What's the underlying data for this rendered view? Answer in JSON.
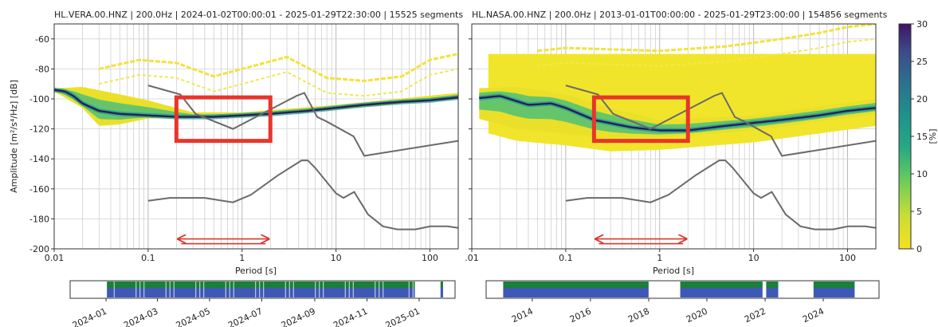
{
  "chart_data": [
    {
      "type": "heatmap",
      "title": "HL.VERA.00.HNZ | 200.0Hz | 2024-01-02T00:00:01 - 2025-01-29T22:30:00 | 15525 segments",
      "xlabel": "Period [s]",
      "ylabel": "Amplitude [m²/s⁴/Hz] [dB]",
      "x_scale": "log",
      "xlim": [
        0.01,
        200
      ],
      "ylim": [
        -200,
        -50
      ],
      "x_tick_labels": [
        "0.01",
        "0.1",
        "1",
        "10",
        "100"
      ],
      "y_tick_labels": [
        "-60",
        "-80",
        "-100",
        "-120",
        "-140",
        "-160",
        "-180",
        "-200"
      ],
      "grid": true,
      "ppsd_mode": [
        [
          0.01,
          -94
        ],
        [
          0.013,
          -95
        ],
        [
          0.016,
          -98
        ],
        [
          0.02,
          -103
        ],
        [
          0.03,
          -108
        ],
        [
          0.05,
          -110
        ],
        [
          0.1,
          -111
        ],
        [
          0.2,
          -112
        ],
        [
          0.5,
          -112
        ],
        [
          1,
          -111
        ],
        [
          2,
          -110
        ],
        [
          5,
          -108
        ],
        [
          10,
          -106
        ],
        [
          20,
          -104
        ],
        [
          50,
          -102
        ],
        [
          100,
          -101
        ],
        [
          200,
          -99
        ]
      ],
      "ppsd_lower": [
        [
          0.01,
          -95
        ],
        [
          0.02,
          -106
        ],
        [
          0.03,
          -118
        ],
        [
          0.05,
          -117
        ],
        [
          0.1,
          -113
        ],
        [
          0.3,
          -113
        ],
        [
          1,
          -112
        ],
        [
          10,
          -107
        ],
        [
          200,
          -100
        ]
      ],
      "ppsd_upper": [
        [
          0.01,
          -93
        ],
        [
          0.02,
          -92
        ],
        [
          0.05,
          -97
        ],
        [
          0.1,
          -101
        ],
        [
          0.3,
          -109
        ],
        [
          1,
          -109
        ],
        [
          10,
          -104
        ],
        [
          200,
          -96
        ]
      ],
      "sparse_band": [
        [
          0.03,
          -80
        ],
        [
          0.08,
          -74
        ],
        [
          0.2,
          -76
        ],
        [
          0.5,
          -85
        ],
        [
          1,
          -80
        ],
        [
          3,
          -72
        ],
        [
          8,
          -86
        ],
        [
          20,
          -88
        ],
        [
          50,
          -85
        ],
        [
          100,
          -74
        ],
        [
          200,
          -70
        ]
      ],
      "nhnm": [
        [
          0.1,
          -91
        ],
        [
          0.22,
          -97
        ],
        [
          0.32,
          -110
        ],
        [
          0.8,
          -120
        ],
        [
          3.8,
          -98
        ],
        [
          4.6,
          -96
        ],
        [
          6.3,
          -112
        ],
        [
          7.9,
          -115
        ],
        [
          15.4,
          -125
        ],
        [
          20,
          -138
        ],
        [
          200,
          -128
        ]
      ],
      "nlnm": [
        [
          0.1,
          -168
        ],
        [
          0.17,
          -166
        ],
        [
          0.4,
          -166
        ],
        [
          0.8,
          -169
        ],
        [
          1.24,
          -164
        ],
        [
          2.4,
          -151
        ],
        [
          4.3,
          -141
        ],
        [
          5,
          -141
        ],
        [
          6,
          -146
        ],
        [
          10,
          -163
        ],
        [
          12,
          -166
        ],
        [
          15.6,
          -162
        ],
        [
          21.9,
          -177
        ],
        [
          31.6,
          -185
        ],
        [
          45,
          -187
        ],
        [
          70,
          -187
        ],
        [
          101,
          -185
        ],
        [
          154,
          -185
        ],
        [
          200,
          -186
        ]
      ],
      "colorbar": {
        "label": "[%]",
        "min": 0,
        "max": 30,
        "ticks": [
          "0",
          "5",
          "10",
          "15",
          "20",
          "25",
          "30"
        ],
        "cmap": "viridis_r"
      },
      "highlight_box": {
        "x": [
          0.2,
          2
        ],
        "y": [
          -99,
          -128
        ],
        "color": "#e8352b"
      },
      "arrow_span": {
        "x": [
          0.2,
          2
        ],
        "color": "#d9382e"
      },
      "availability": {
        "tick_labels": [
          "2024-01",
          "2024-03",
          "2024-05",
          "2024-07",
          "2024-09",
          "2024-11",
          "2025-01"
        ],
        "segments": [
          {
            "start": "2024-01-02",
            "end": "2024-12-27"
          },
          {
            "start": "2025-01-26",
            "end": "2025-01-29"
          }
        ],
        "colors": {
          "green": "#1a7f3a",
          "blue": "#3f58b5"
        }
      }
    },
    {
      "type": "heatmap",
      "title": "HL.NASA.00.HNZ | 200.0Hz | 2013-01-01T00:00:00 - 2025-01-29T23:00:00 | 154856 segments",
      "xlabel": "Period [s]",
      "x_scale": "log",
      "xlim": [
        0.01,
        200
      ],
      "ylim": [
        -200,
        -50
      ],
      "x_tick_labels": [
        ".01",
        "0.1",
        "1",
        "10",
        "100"
      ],
      "grid": true,
      "ppsd_mode": [
        [
          0.01,
          -100
        ],
        [
          0.02,
          -98
        ],
        [
          0.04,
          -104
        ],
        [
          0.07,
          -103
        ],
        [
          0.1,
          -106
        ],
        [
          0.2,
          -114
        ],
        [
          0.5,
          -119
        ],
        [
          1,
          -121
        ],
        [
          2,
          -121
        ],
        [
          5,
          -118
        ],
        [
          10,
          -116
        ],
        [
          20,
          -114
        ],
        [
          50,
          -111
        ],
        [
          100,
          -108
        ],
        [
          200,
          -106
        ]
      ],
      "ppsd_lower": [
        [
          0.01,
          -112
        ],
        [
          0.03,
          -120
        ],
        [
          0.1,
          -123
        ],
        [
          0.3,
          -127
        ],
        [
          1,
          -126
        ],
        [
          10,
          -121
        ],
        [
          200,
          -110
        ]
      ],
      "ppsd_upper": [
        [
          0.01,
          -93
        ],
        [
          0.03,
          -92
        ],
        [
          0.1,
          -97
        ],
        [
          0.3,
          -106
        ],
        [
          1,
          -114
        ],
        [
          10,
          -111
        ],
        [
          200,
          -100
        ]
      ],
      "yellow_fill": [
        [
          0.01,
          -70
        ],
        [
          200,
          -70
        ]
      ],
      "sparse_band": [
        [
          0.05,
          -68
        ],
        [
          0.1,
          -66
        ],
        [
          1,
          -68
        ],
        [
          5,
          -65
        ],
        [
          20,
          -60
        ],
        [
          50,
          -56
        ],
        [
          100,
          -52
        ],
        [
          200,
          -50
        ]
      ],
      "nhnm": [
        [
          0.1,
          -91
        ],
        [
          0.22,
          -97
        ],
        [
          0.32,
          -110
        ],
        [
          0.8,
          -120
        ],
        [
          3.8,
          -98
        ],
        [
          4.6,
          -96
        ],
        [
          6.3,
          -112
        ],
        [
          7.9,
          -115
        ],
        [
          15.4,
          -125
        ],
        [
          20,
          -138
        ],
        [
          200,
          -128
        ]
      ],
      "nlnm": [
        [
          0.1,
          -168
        ],
        [
          0.17,
          -166
        ],
        [
          0.4,
          -166
        ],
        [
          0.8,
          -169
        ],
        [
          1.24,
          -164
        ],
        [
          2.4,
          -151
        ],
        [
          4.3,
          -141
        ],
        [
          5,
          -141
        ],
        [
          6,
          -146
        ],
        [
          10,
          -163
        ],
        [
          12,
          -166
        ],
        [
          15.6,
          -162
        ],
        [
          21.9,
          -177
        ],
        [
          31.6,
          -185
        ],
        [
          45,
          -187
        ],
        [
          70,
          -187
        ],
        [
          101,
          -185
        ],
        [
          154,
          -185
        ],
        [
          200,
          -186
        ]
      ],
      "highlight_box": {
        "x": [
          0.2,
          2
        ],
        "y": [
          -99,
          -128
        ],
        "color": "#e8352b"
      },
      "arrow_span": {
        "x": [
          0.2,
          2
        ],
        "color": "#d9382e"
      },
      "availability": {
        "tick_labels": [
          "2014",
          "2016",
          "2018",
          "2020",
          "2022",
          "2024"
        ],
        "segments": [
          {
            "start": "2013-01-01",
            "end": "2017-12-31"
          },
          {
            "start": "2019-02-01",
            "end": "2021-11-30"
          },
          {
            "start": "2022-01-15",
            "end": "2022-06-15"
          },
          {
            "start": "2023-09-01",
            "end": "2025-01-29"
          }
        ],
        "colors": {
          "green": "#1a7f3a",
          "blue": "#3f58b5"
        }
      }
    }
  ]
}
